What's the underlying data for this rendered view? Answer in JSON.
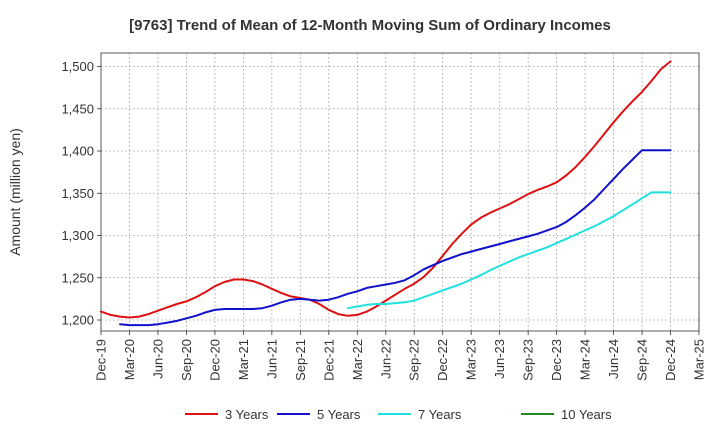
{
  "chart_data": {
    "type": "line",
    "title": "[9763]  Trend of Mean of 12-Month Moving Sum of Ordinary Incomes",
    "xlabel": "",
    "ylabel": "Amount (million yen)",
    "x_ticks": [
      "Dec-19",
      "Mar-20",
      "Jun-20",
      "Sep-20",
      "Dec-20",
      "Mar-21",
      "Jun-21",
      "Sep-21",
      "Dec-21",
      "Mar-22",
      "Jun-22",
      "Sep-22",
      "Dec-22",
      "Mar-23",
      "Jun-23",
      "Sep-23",
      "Dec-23",
      "Mar-24",
      "Jun-24",
      "Sep-24",
      "Dec-24",
      "Mar-25"
    ],
    "y_ticks": [
      1200,
      1250,
      1300,
      1350,
      1400,
      1450,
      1500
    ],
    "y_tick_labels": [
      "1,200",
      "1,250",
      "1,300",
      "1,350",
      "1,400",
      "1,450",
      "1,500"
    ],
    "ylim": [
      1187,
      1516
    ],
    "xlim_months": [
      0,
      63
    ],
    "grid": true,
    "legend_position": "bottom",
    "series": [
      {
        "name": "3 Years",
        "color": "#dd1111",
        "x": [
          0,
          1,
          2,
          3,
          4,
          5,
          6,
          7,
          8,
          9,
          10,
          11,
          12,
          13,
          14,
          15,
          16,
          17,
          18,
          19,
          20,
          21,
          22,
          23,
          24,
          25,
          26,
          27,
          28,
          29,
          30,
          31,
          32,
          33,
          34,
          35,
          36,
          37,
          38,
          39,
          40,
          41,
          42,
          43,
          44,
          45,
          46,
          47,
          48,
          49,
          50,
          51,
          52,
          53,
          54,
          55,
          56,
          57,
          58,
          59,
          60
        ],
        "values": [
          1210,
          1206,
          1204,
          1203,
          1204,
          1207,
          1211,
          1215,
          1219,
          1222,
          1227,
          1233,
          1240,
          1245,
          1248,
          1248,
          1246,
          1242,
          1237,
          1232,
          1228,
          1226,
          1224,
          1219,
          1212,
          1207,
          1205,
          1206,
          1210,
          1216,
          1223,
          1230,
          1237,
          1243,
          1251,
          1262,
          1276,
          1290,
          1302,
          1313,
          1321,
          1327,
          1332,
          1337,
          1343,
          1349,
          1354,
          1358,
          1363,
          1371,
          1381,
          1393,
          1406,
          1420,
          1434,
          1447,
          1459,
          1470,
          1483,
          1497,
          1506
        ]
      },
      {
        "name": "5 Years",
        "color": "#1111cc",
        "x": [
          2,
          3,
          4,
          5,
          6,
          7,
          8,
          9,
          10,
          11,
          12,
          13,
          14,
          15,
          16,
          17,
          18,
          19,
          20,
          21,
          22,
          23,
          24,
          25,
          26,
          27,
          28,
          29,
          30,
          31,
          32,
          33,
          34,
          35,
          36,
          37,
          38,
          39,
          40,
          41,
          42,
          43,
          44,
          45,
          46,
          47,
          48,
          49,
          50,
          51,
          52,
          53,
          54,
          55,
          56,
          57,
          58,
          59,
          60
        ],
        "values": [
          1195,
          1194,
          1194,
          1194,
          1195,
          1197,
          1199,
          1202,
          1205,
          1209,
          1212,
          1213,
          1213,
          1213,
          1213,
          1214,
          1217,
          1221,
          1224,
          1225,
          1224,
          1223,
          1224,
          1227,
          1231,
          1234,
          1238,
          1240,
          1242,
          1244,
          1247,
          1253,
          1260,
          1265,
          1270,
          1274,
          1278,
          1281,
          1284,
          1287,
          1290,
          1293,
          1296,
          1299,
          1302,
          1306,
          1310,
          1316,
          1324,
          1333,
          1343,
          1355,
          1367,
          1379,
          1390,
          1401,
          1401,
          1401,
          1401
        ]
      },
      {
        "name": "7 Years",
        "color": "#22e0e0",
        "x": [
          26,
          27,
          28,
          29,
          30,
          31,
          32,
          33,
          34,
          35,
          36,
          37,
          38,
          39,
          40,
          41,
          42,
          43,
          44,
          45,
          46,
          47,
          48,
          49,
          50,
          51,
          52,
          53,
          54,
          55,
          56,
          57,
          58,
          59,
          60
        ],
        "values": [
          1214,
          1216,
          1218,
          1219,
          1219,
          1220,
          1221,
          1223,
          1227,
          1231,
          1235,
          1239,
          1243,
          1248,
          1253,
          1259,
          1264,
          1269,
          1274,
          1278,
          1282,
          1286,
          1291,
          1296,
          1301,
          1306,
          1311,
          1317,
          1323,
          1330,
          1337,
          1344,
          1351,
          1351,
          1351
        ]
      },
      {
        "name": "10 Years",
        "color": "#228822",
        "x": [],
        "values": []
      }
    ]
  }
}
